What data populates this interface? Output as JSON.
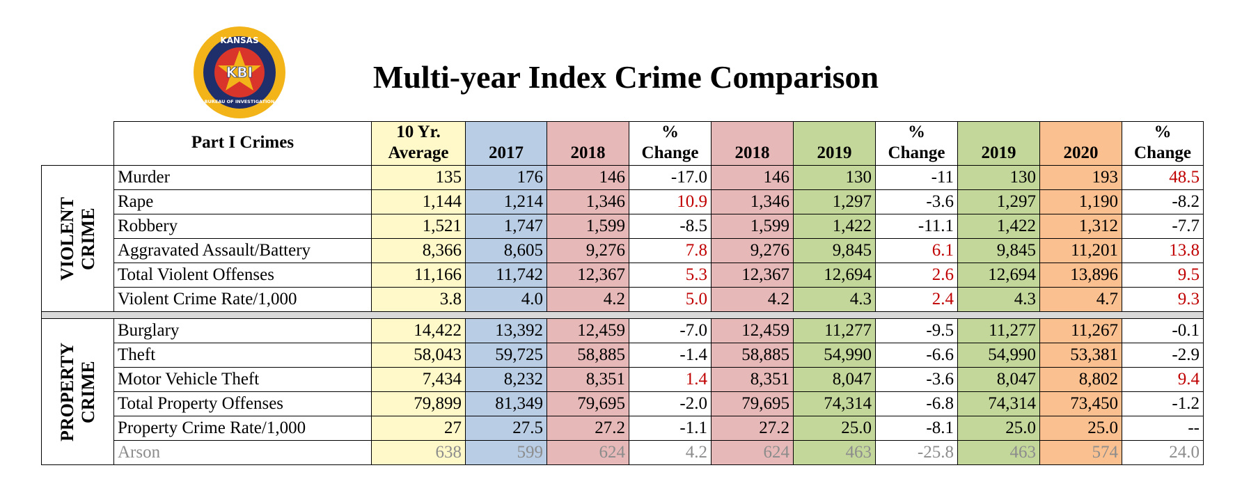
{
  "header": {
    "title": "Multi-year Index Crime Comparison",
    "logo": {
      "top": "KANSAS",
      "center": "KBI",
      "bottom": "BUREAU OF INVESTIGATION"
    }
  },
  "table": {
    "label_header": "Part I Crimes",
    "columns": [
      {
        "lines": [
          "10 Yr.",
          "Average"
        ],
        "color": "#fff9c9"
      },
      {
        "lines": [
          "2017"
        ],
        "color": "#b9cde5"
      },
      {
        "lines": [
          "2018"
        ],
        "color": "#e6b9b8"
      },
      {
        "lines": [
          "%",
          "Change"
        ],
        "color": "#ffffff",
        "positive_color": "#c00000"
      },
      {
        "lines": [
          "2018"
        ],
        "color": "#e6b9b8"
      },
      {
        "lines": [
          "2019"
        ],
        "color": "#c4d79b"
      },
      {
        "lines": [
          "%",
          "Change"
        ],
        "color": "#ffffff",
        "positive_color": "#c00000"
      },
      {
        "lines": [
          "2019"
        ],
        "color": "#c4d79b"
      },
      {
        "lines": [
          "2020"
        ],
        "color": "#fac090"
      },
      {
        "lines": [
          "%",
          "Change"
        ],
        "color": "#ffffff",
        "positive_color": "#c00000"
      }
    ],
    "sections": [
      {
        "lines": [
          "VIOLENT",
          "CRIME"
        ],
        "rows": [
          {
            "label": "Murder",
            "cells": [
              "135",
              "176",
              "146",
              "-17.0",
              "146",
              "130",
              "-11",
              "130",
              "193",
              "48.5"
            ]
          },
          {
            "label": "Rape",
            "cells": [
              "1,144",
              "1,214",
              "1,346",
              "10.9",
              "1,346",
              "1,297",
              "-3.6",
              "1,297",
              "1,190",
              "-8.2"
            ]
          },
          {
            "label": "Robbery",
            "cells": [
              "1,521",
              "1,747",
              "1,599",
              "-8.5",
              "1,599",
              "1,422",
              "-11.1",
              "1,422",
              "1,312",
              "-7.7"
            ]
          },
          {
            "label": "Aggravated Assault/Battery",
            "cells": [
              "8,366",
              "8,605",
              "9,276",
              "7.8",
              "9,276",
              "9,845",
              "6.1",
              "9,845",
              "11,201",
              "13.8"
            ]
          },
          {
            "label": "Total Violent Offenses",
            "cells": [
              "11,166",
              "11,742",
              "12,367",
              "5.3",
              "12,367",
              "12,694",
              "2.6",
              "12,694",
              "13,896",
              "9.5"
            ]
          },
          {
            "label": "Violent Crime Rate/1,000",
            "cells": [
              "3.8",
              "4.0",
              "4.2",
              "5.0",
              "4.2",
              "4.3",
              "2.4",
              "4.3",
              "4.7",
              "9.3"
            ]
          }
        ]
      },
      {
        "lines": [
          "PROPERTY",
          "CRIME"
        ],
        "rows": [
          {
            "label": "Burglary",
            "cells": [
              "14,422",
              "13,392",
              "12,459",
              "-7.0",
              "12,459",
              "11,277",
              "-9.5",
              "11,277",
              "11,267",
              "-0.1"
            ]
          },
          {
            "label": "Theft",
            "cells": [
              "58,043",
              "59,725",
              "58,885",
              "-1.4",
              "58,885",
              "54,990",
              "-6.6",
              "54,990",
              "53,381",
              "-2.9"
            ]
          },
          {
            "label": "Motor Vehicle Theft",
            "cells": [
              "7,434",
              "8,232",
              "8,351",
              "1.4",
              "8,351",
              "8,047",
              "-3.6",
              "8,047",
              "8,802",
              "9.4"
            ]
          },
          {
            "label": "Total Property Offenses",
            "cells": [
              "79,899",
              "81,349",
              "79,695",
              "-2.0",
              "79,695",
              "74,314",
              "-6.8",
              "74,314",
              "73,450",
              "-1.2"
            ]
          },
          {
            "label": "Property Crime Rate/1,000",
            "cells": [
              "27",
              "27.5",
              "27.2",
              "-1.1",
              "27.2",
              "25.0",
              "-8.1",
              "25.0",
              "25.0",
              "--"
            ]
          },
          {
            "label": "Arson",
            "muted": true,
            "cells": [
              "638",
              "599",
              "624",
              "4.2",
              "624",
              "463",
              "-25.8",
              "463",
              "574",
              "24.0"
            ]
          }
        ]
      }
    ]
  }
}
